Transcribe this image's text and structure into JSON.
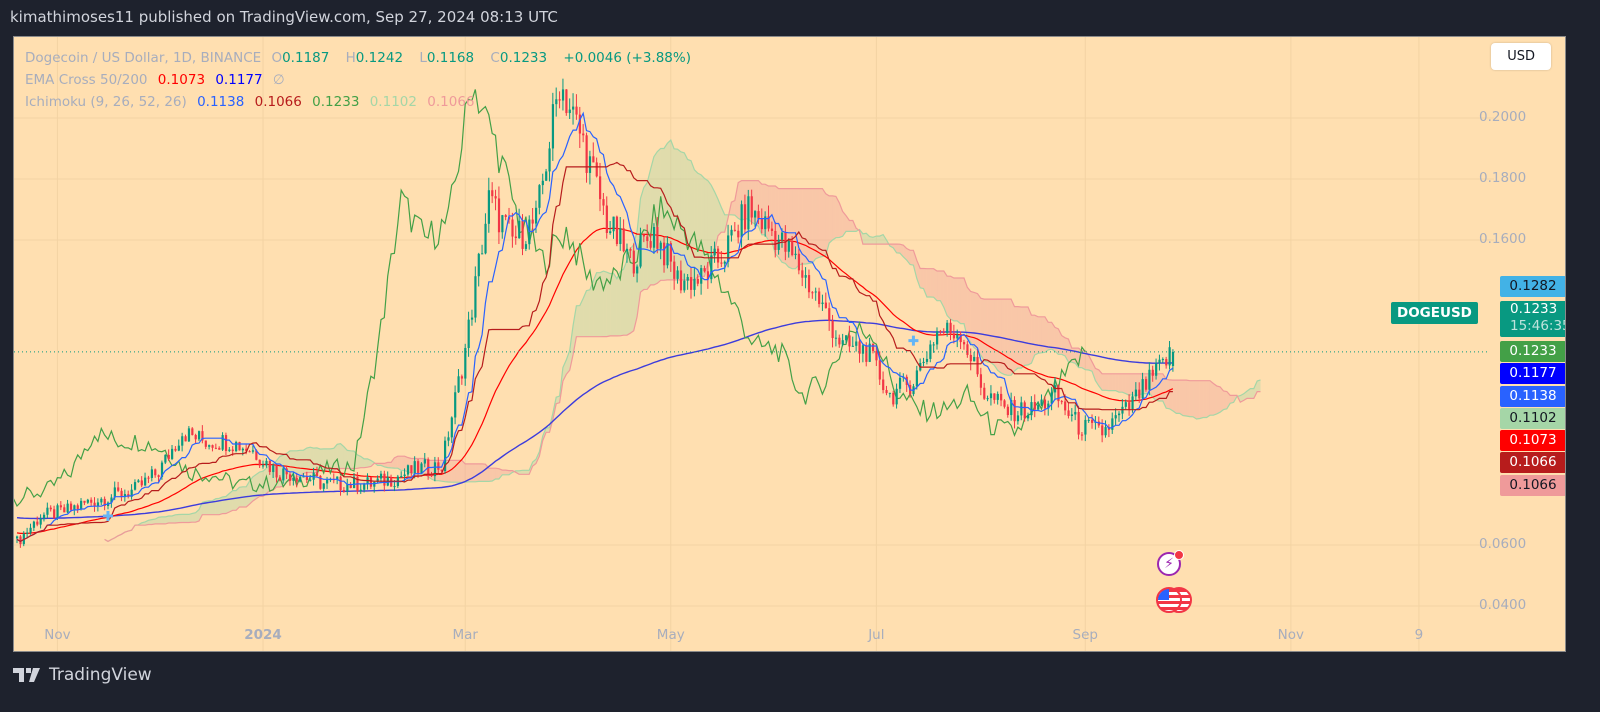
{
  "header": {
    "published": "kimathimoses11 published on TradingView.com, Sep 27, 2024 08:13 UTC"
  },
  "legend": {
    "symbol": "Dogecoin / US Dollar, 1D, BINANCE",
    "o_label": "O",
    "o": "0.1187",
    "h_label": "H",
    "h": "0.1242",
    "l_label": "L",
    "l": "0.1168",
    "c_label": "C",
    "c": "0.1233",
    "change": "+0.0046 (+3.88%)",
    "ema_name": "EMA Cross 50/200",
    "ema50": "0.1073",
    "ema200": "0.1177",
    "ema_extra": "∅",
    "ichi_name": "Ichimoku (9, 26, 52, 26)",
    "ichi_conv": "0.1138",
    "ichi_base": "0.1066",
    "ichi_lag": "0.1233",
    "ichi_spanA": "0.1102",
    "ichi_spanB": "0.1066"
  },
  "currency_button": "USD",
  "price_badges": {
    "high_marker": "0.1282",
    "symbol": "DOGEUSD",
    "last_price": "0.1233",
    "countdown": "15:46:35",
    "lagging": "0.1233",
    "ema200": "0.1177",
    "conversion": "0.1138",
    "spanA": "0.1102",
    "ema50": "0.1073",
    "base": "0.1066",
    "spanB": "0.1066"
  },
  "footer": {
    "brand": "TradingView"
  },
  "colors": {
    "background": "#ffdfb0",
    "up": "#089981",
    "down": "#f23645",
    "ema50": "#ff0000",
    "ema200": "#3c3cdc",
    "conversion": "#2962ff",
    "base": "#b71c1c",
    "lagging": "#43a047",
    "spanA": "#a5d6a7",
    "spanB": "#ef9a9a"
  },
  "chart_data": {
    "type": "candlestick",
    "title": "Dogecoin / US Dollar, 1D, BINANCE",
    "start_date": "2023-10-20",
    "end_date": "2024-09-27",
    "weekly_close_days": [
      0,
      7,
      14,
      21,
      28,
      35,
      42,
      49,
      56,
      63,
      70,
      77,
      84,
      91,
      98,
      105,
      112,
      119,
      126,
      133,
      140,
      147,
      154,
      161,
      168,
      175,
      182,
      189,
      196,
      203,
      210,
      217,
      224,
      231,
      238,
      245,
      252,
      259,
      266,
      273,
      280,
      287,
      294,
      301,
      308,
      315,
      322,
      329,
      343
    ],
    "weekly_close": [
      0.061,
      0.0695,
      0.071,
      0.074,
      0.076,
      0.078,
      0.084,
      0.097,
      0.094,
      0.094,
      0.091,
      0.084,
      0.083,
      0.08,
      0.08,
      0.08,
      0.082,
      0.085,
      0.086,
      0.124,
      0.173,
      0.16,
      0.166,
      0.212,
      0.192,
      0.166,
      0.153,
      0.163,
      0.147,
      0.147,
      0.156,
      0.17,
      0.163,
      0.153,
      0.14,
      0.125,
      0.124,
      0.109,
      0.114,
      0.13,
      0.13,
      0.11,
      0.104,
      0.104,
      0.109,
      0.099,
      0.097,
      0.104,
      0.1233
    ],
    "last_candle": {
      "open": 0.1187,
      "high": 0.1242,
      "low": 0.1168,
      "close": 0.1233
    },
    "y_ticks": [
      "0.2000",
      "0.1800",
      "0.1600",
      "0.0600",
      "0.0400"
    ],
    "y_tick_values": [
      0.2,
      0.18,
      0.16,
      0.06,
      0.04
    ],
    "x_ticks": [
      "Nov",
      "2024",
      "Mar",
      "May",
      "Jul",
      "Sep",
      "Nov",
      "9"
    ],
    "x_tick_days": [
      12,
      73,
      133,
      194,
      255,
      317,
      378,
      416
    ],
    "ylim": [
      0.04,
      0.21
    ],
    "indicators": [
      "EMA 50",
      "EMA 200",
      "Ichimoku (9, 26, 52, 26)"
    ]
  }
}
